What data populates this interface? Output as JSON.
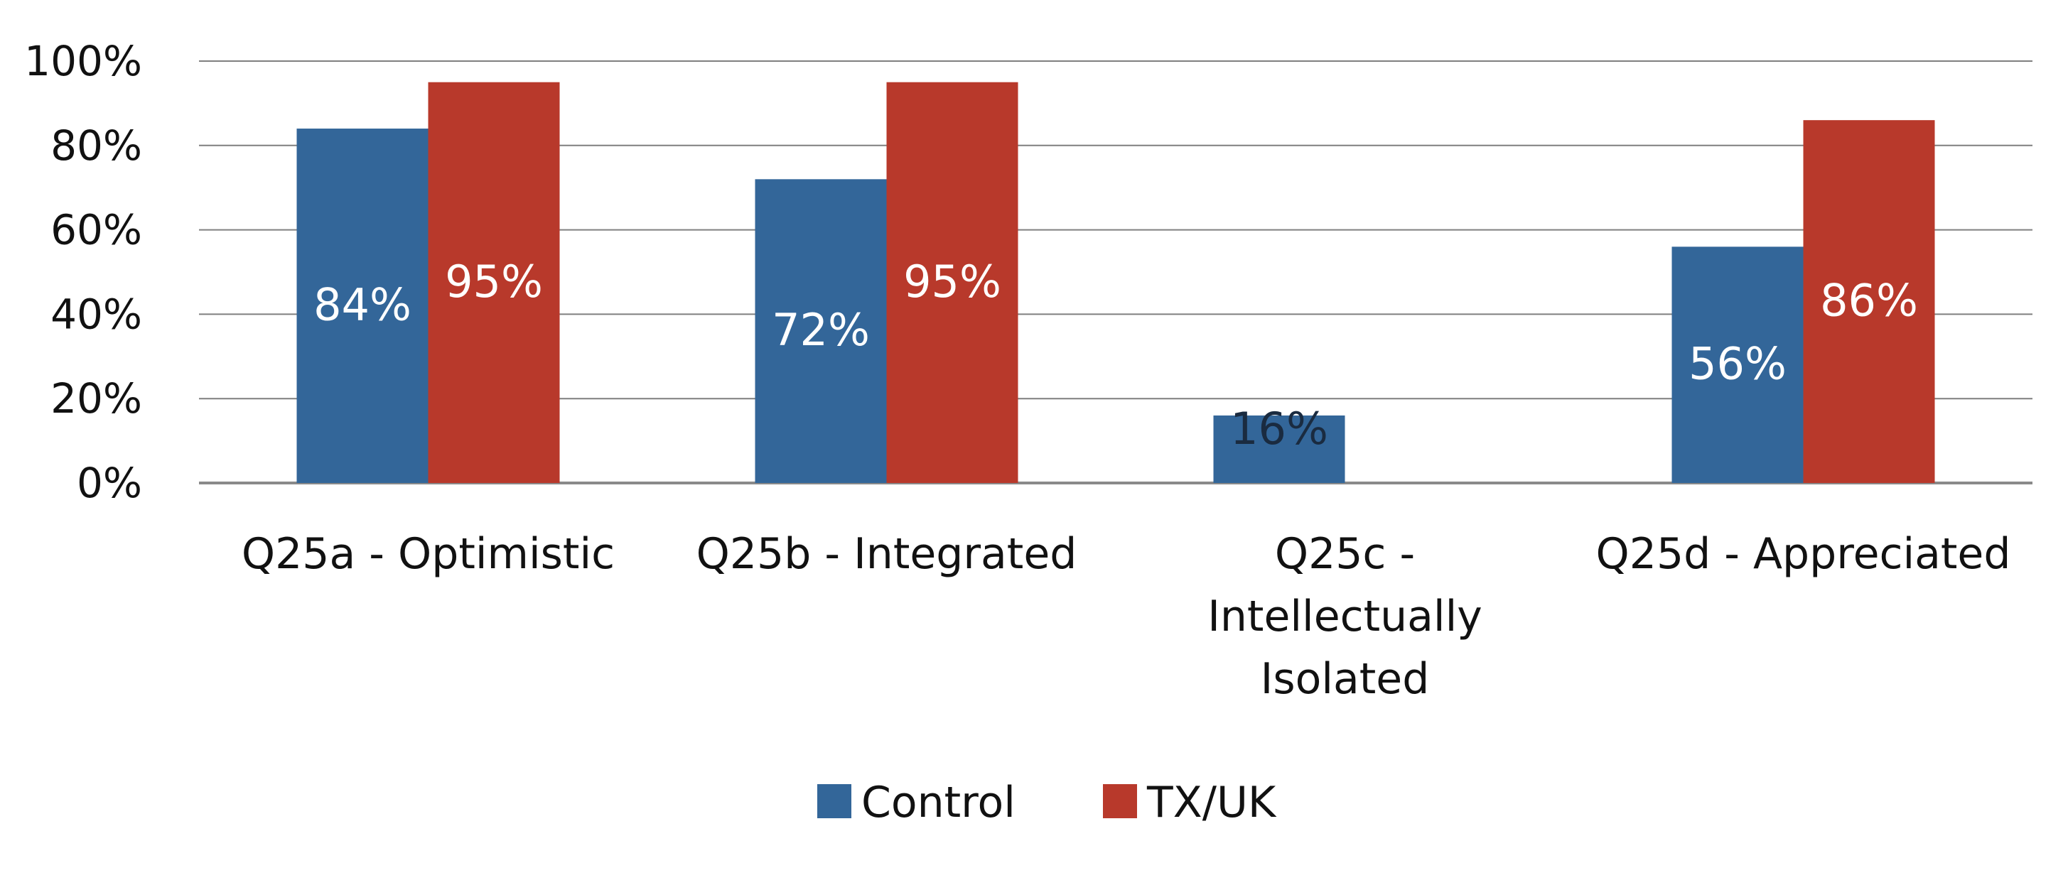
{
  "chart_data": {
    "type": "bar",
    "categories": [
      [
        "Q25a - Optimistic"
      ],
      [
        "Q25b - Integrated"
      ],
      [
        "Q25c -",
        "Intellectually",
        "Isolated"
      ],
      [
        "Q25d - Appreciated"
      ]
    ],
    "series": [
      {
        "name": "Control",
        "color": "#336699",
        "values": [
          84,
          72,
          16,
          56
        ],
        "labels": [
          "84%",
          "72%",
          "16%",
          "56%"
        ]
      },
      {
        "name": "TX/UK",
        "color": "#b8392b",
        "values": [
          95,
          95,
          null,
          86
        ],
        "labels": [
          "95%",
          "95%",
          "",
          "86%"
        ]
      }
    ],
    "y_ticks": [
      "0%",
      "20%",
      "40%",
      "60%",
      "80%",
      "100%"
    ],
    "ylim": [
      0,
      100
    ],
    "grid": true,
    "legend": "bottom"
  }
}
